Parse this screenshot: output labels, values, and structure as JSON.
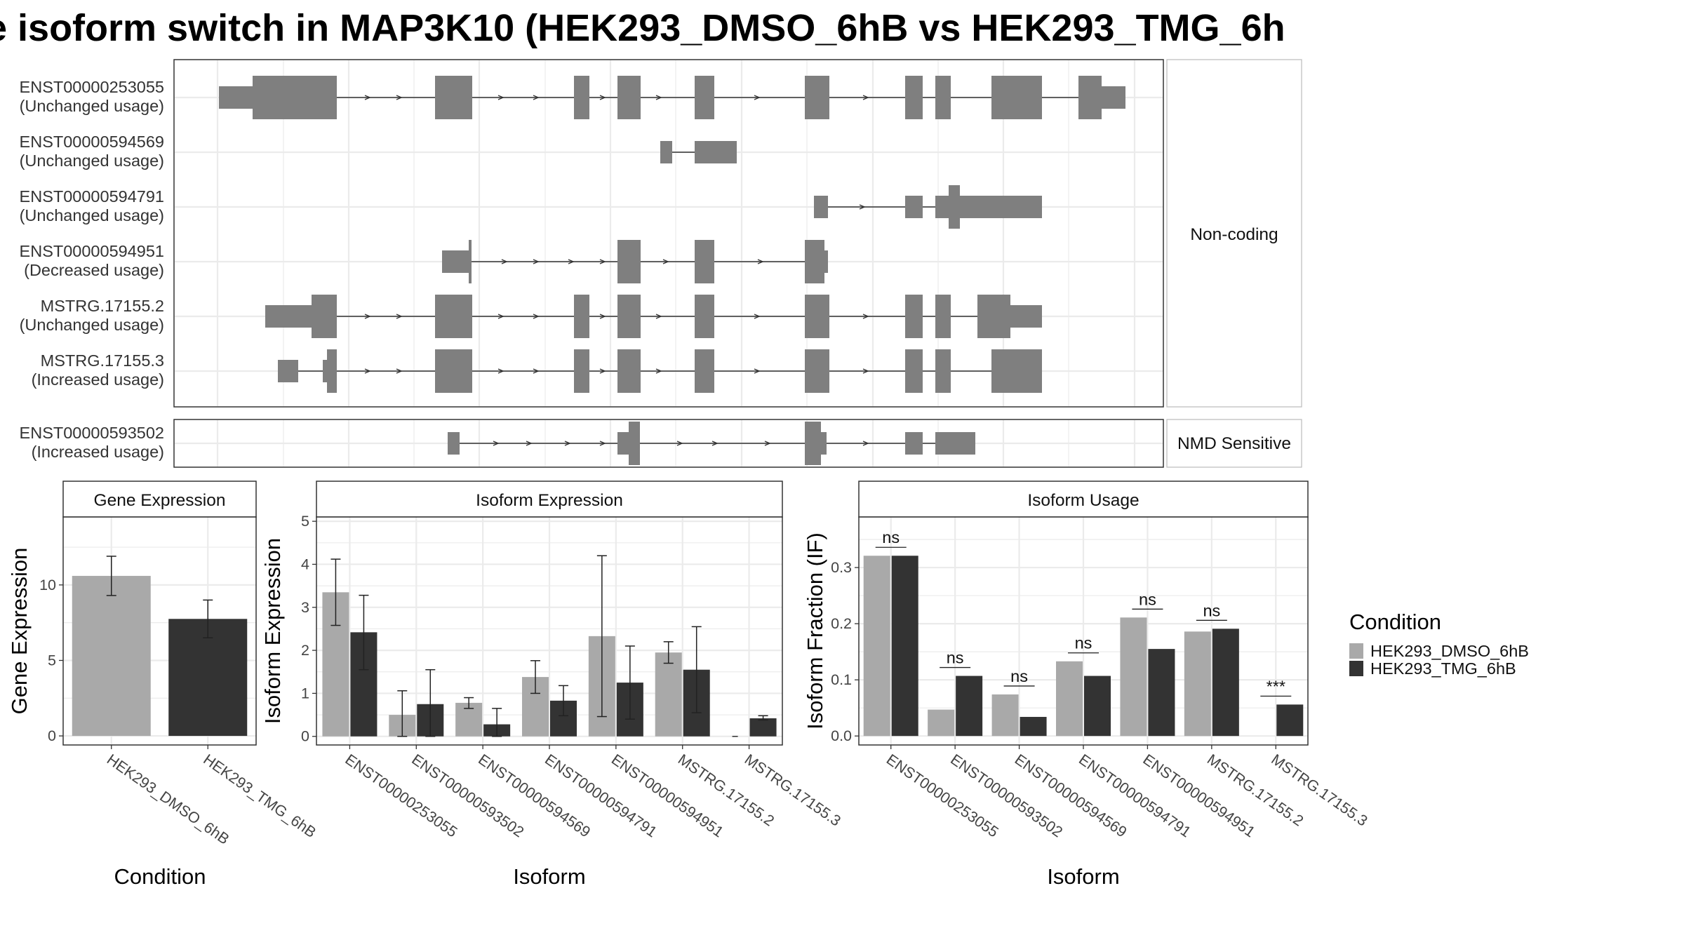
{
  "title": "e isoform switch in MAP3K10 (HEK293_DMSO_6hB vs HEK293_TMG_6h",
  "colors": {
    "dmso": "#a9a9a9",
    "tmg": "#333333",
    "exon": "#7f7f7f",
    "grid": "#ebebeb",
    "frame": "#333333",
    "strip_fill": "#ffffff"
  },
  "structure": {
    "strips": [
      "Non-coding",
      "NMD Sensitive"
    ],
    "transcripts": [
      {
        "id": "ENST00000253055",
        "usage": "(Unchanged usage)",
        "group": 0
      },
      {
        "id": "ENST00000594569",
        "usage": "(Unchanged usage)",
        "group": 0
      },
      {
        "id": "ENST00000594791",
        "usage": "(Unchanged usage)",
        "group": 0
      },
      {
        "id": "ENST00000594951",
        "usage": "(Decreased usage)",
        "group": 0
      },
      {
        "id": "MSTRG.17155.2",
        "usage": "(Unchanged usage)",
        "group": 0
      },
      {
        "id": "MSTRG.17155.3",
        "usage": "(Increased usage)",
        "group": 0
      },
      {
        "id": "ENST00000593502",
        "usage": "(Increased usage)",
        "group": 1
      }
    ]
  },
  "chart_data": [
    {
      "type": "bar",
      "strip": "Gene Expression",
      "xlabel": "Condition",
      "ylabel": "Gene Expression",
      "ylim": [
        -0.6,
        14.5
      ],
      "yticks": [
        0,
        5,
        10
      ],
      "categories": [
        "HEK293_DMSO_6hB",
        "HEK293_TMG_6hB"
      ],
      "values": [
        10.6,
        7.75
      ],
      "errors": [
        [
          9.3,
          11.9
        ],
        [
          6.5,
          9.0
        ]
      ]
    },
    {
      "type": "bar",
      "strip": "Isoform Expression",
      "xlabel": "Isoform",
      "ylabel": "Isoform Expression",
      "ylim": [
        -0.2,
        5.1
      ],
      "yticks": [
        0,
        1,
        2,
        3,
        4,
        5
      ],
      "categories": [
        "ENST00000253055",
        "ENST00000593502",
        "ENST00000594569",
        "ENST00000594791",
        "ENST00000594951",
        "MSTRG.17155.2",
        "MSTRG.17155.3"
      ],
      "series": [
        {
          "name": "HEK293_DMSO_6hB",
          "values": [
            3.35,
            0.5,
            0.78,
            1.38,
            2.33,
            1.95,
            0.0
          ],
          "errors": [
            [
              2.58,
              4.12
            ],
            [
              0.0,
              1.06
            ],
            [
              0.65,
              0.9
            ],
            [
              1.0,
              1.76
            ],
            [
              0.46,
              4.2
            ],
            [
              1.7,
              2.2
            ],
            [
              0.0,
              0.0
            ]
          ]
        },
        {
          "name": "HEK293_TMG_6hB",
          "values": [
            2.42,
            0.75,
            0.28,
            0.83,
            1.25,
            1.55,
            0.42
          ],
          "errors": [
            [
              1.55,
              3.28
            ],
            [
              0.0,
              1.55
            ],
            [
              0.0,
              0.65
            ],
            [
              0.48,
              1.18
            ],
            [
              0.4,
              2.1
            ],
            [
              0.55,
              2.55
            ],
            [
              0.38,
              0.48
            ]
          ]
        }
      ]
    },
    {
      "type": "bar",
      "strip": "Isoform Usage",
      "xlabel": "Isoform",
      "ylabel": "Isoform Fraction (IF)",
      "ylim": [
        -0.016,
        0.39
      ],
      "yticks": [
        0.0,
        0.1,
        0.2,
        0.3
      ],
      "ytick_labels": [
        "0.0",
        "0.1",
        "0.2",
        "0.3"
      ],
      "categories": [
        "ENST00000253055",
        "ENST00000593502",
        "ENST00000594569",
        "ENST00000594791",
        "ENST00000594951",
        "MSTRG.17155.2",
        "MSTRG.17155.3"
      ],
      "series": [
        {
          "name": "HEK293_DMSO_6hB",
          "values": [
            0.321,
            0.047,
            0.074,
            0.133,
            0.211,
            0.186,
            0.0
          ]
        },
        {
          "name": "HEK293_TMG_6hB",
          "values": [
            0.321,
            0.107,
            0.034,
            0.107,
            0.155,
            0.191,
            0.056
          ]
        }
      ],
      "significance": [
        "ns",
        "ns",
        "ns",
        "ns",
        "ns",
        "ns",
        "***"
      ]
    }
  ],
  "legend": {
    "title": "Condition",
    "items": [
      "HEK293_DMSO_6hB",
      "HEK293_TMG_6hB"
    ]
  }
}
